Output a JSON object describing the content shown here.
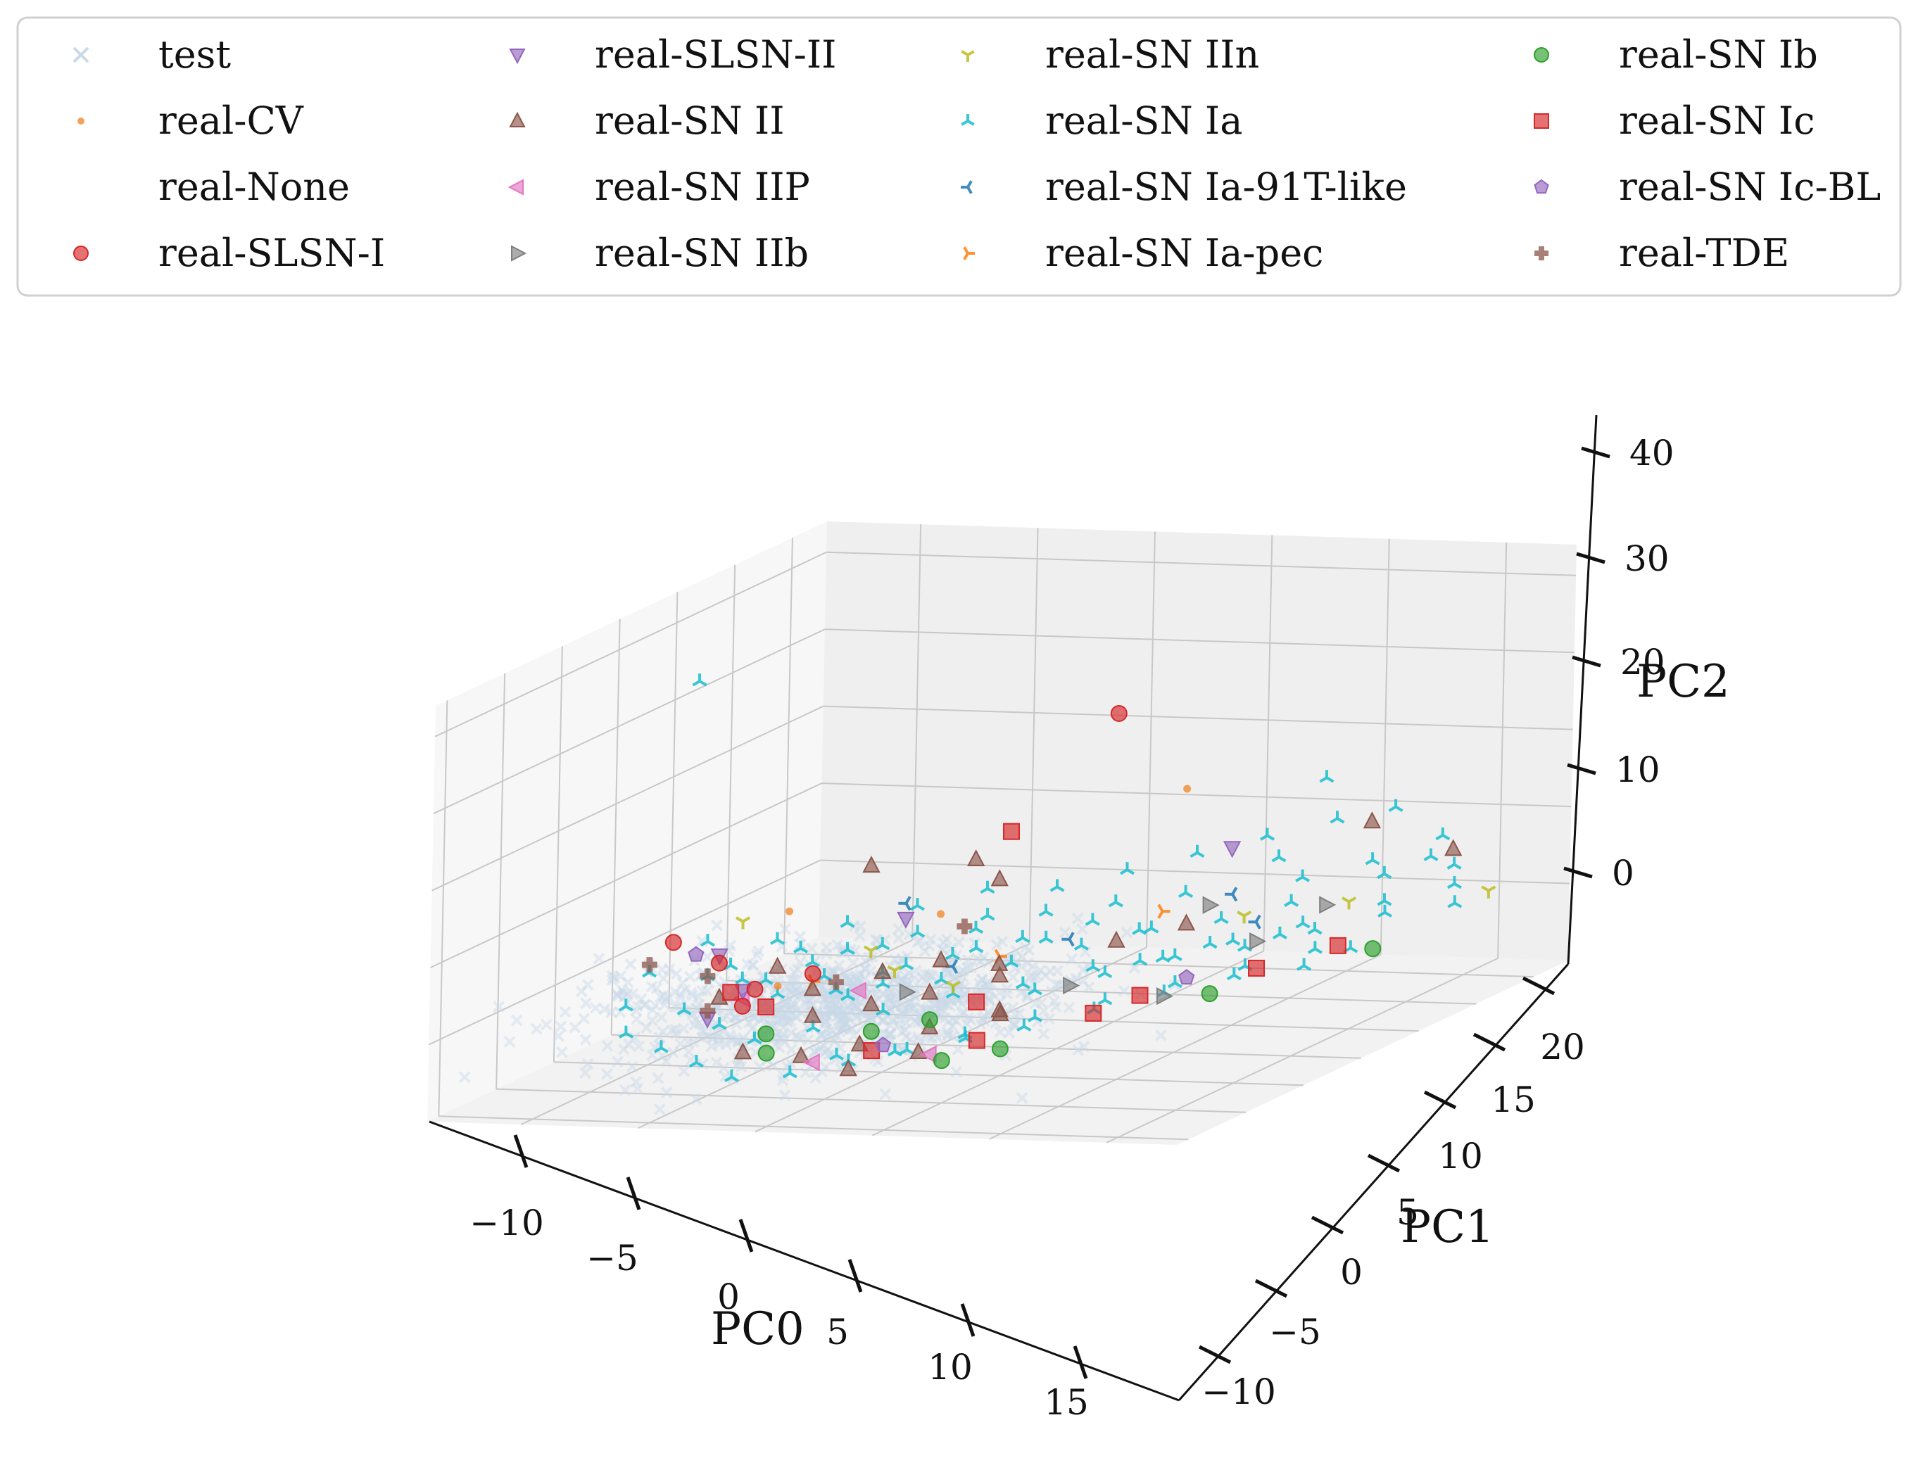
{
  "chart_data": {
    "type": "scatter",
    "projection": "3d",
    "title": "",
    "axes": {
      "x": {
        "label": "PC0",
        "ticks": [
          -10,
          -5,
          0,
          5,
          10,
          15
        ],
        "range": [
          -14,
          18
        ]
      },
      "y": {
        "label": "PC1",
        "ticks": [
          -10,
          -5,
          0,
          5,
          10,
          15,
          20
        ],
        "range": [
          -11,
          23
        ]
      },
      "z": {
        "label": "PC2",
        "ticks": [
          0,
          10,
          20,
          30,
          40
        ],
        "range": [
          -10,
          44
        ]
      }
    },
    "grid": true,
    "legend": {
      "placement": "top",
      "columns": 4,
      "entries": [
        {
          "label": "test",
          "marker": "x",
          "color": "#c9d9e8"
        },
        {
          "label": "real-CV",
          "marker": "dot",
          "color": "#f0903c"
        },
        {
          "label": "real-None",
          "marker": "none",
          "color": "#ffffff"
        },
        {
          "label": "real-SLSN-I",
          "marker": "circle",
          "color": "#d62728"
        },
        {
          "label": "real-SLSN-II",
          "marker": "triangle-down",
          "color": "#9467bd"
        },
        {
          "label": "real-SN II",
          "marker": "triangle-up",
          "color": "#8c564b"
        },
        {
          "label": "real-SN IIP",
          "marker": "triangle-left",
          "color": "#e377c2"
        },
        {
          "label": "real-SN IIb",
          "marker": "triangle-right",
          "color": "#7f7f7f"
        },
        {
          "label": "real-SN IIn",
          "marker": "tri-down",
          "color": "#bcbd22"
        },
        {
          "label": "real-SN Ia",
          "marker": "tri-up",
          "color": "#17becf"
        },
        {
          "label": "real-SN Ia-91T-like",
          "marker": "tri-left",
          "color": "#1f77b4"
        },
        {
          "label": "real-SN Ia-pec",
          "marker": "tri-right",
          "color": "#ff7f0e"
        },
        {
          "label": "real-SN Ib",
          "marker": "circle",
          "color": "#2ca02c"
        },
        {
          "label": "real-SN Ic",
          "marker": "square",
          "color": "#d62728"
        },
        {
          "label": "real-SN Ic-BL",
          "marker": "pentagon",
          "color": "#9467bd"
        },
        {
          "label": "real-TDE",
          "marker": "plus",
          "color": "#8c564b"
        }
      ]
    },
    "series": [
      {
        "name": "real-SLSN-I",
        "points": [
          [
            3,
            14,
            27
          ],
          [
            -9,
            0,
            6
          ],
          [
            -8,
            2,
            2
          ],
          [
            -5,
            -1,
            1
          ],
          [
            -6,
            0,
            -2
          ],
          [
            -4,
            2,
            1
          ]
        ]
      },
      {
        "name": "real-CV",
        "points": [
          [
            5,
            16,
            16
          ],
          [
            -7,
            6,
            6
          ],
          [
            -2,
            9,
            4
          ],
          [
            -5,
            1,
            0
          ]
        ]
      },
      {
        "name": "real-SLSN-II",
        "points": [
          [
            6,
            18,
            7
          ],
          [
            -8,
            2,
            3
          ],
          [
            -3,
            8,
            4
          ],
          [
            -6,
            0,
            0
          ],
          [
            -7,
            -1,
            -3
          ]
        ]
      },
      {
        "name": "real-SN II",
        "points": [
          [
            10,
            22,
            8
          ],
          [
            13,
            23,
            4
          ],
          [
            -5,
            9,
            10
          ],
          [
            0,
            10,
            8
          ],
          [
            -2,
            12,
            9
          ],
          [
            -6,
            3,
            1
          ],
          [
            -4,
            2,
            -1
          ],
          [
            -2,
            4,
            0
          ],
          [
            0,
            5,
            1
          ],
          [
            2,
            6,
            0
          ],
          [
            -3,
            0,
            -3
          ],
          [
            -1,
            1,
            -2
          ],
          [
            1,
            2,
            -1
          ],
          [
            3,
            4,
            0
          ],
          [
            4,
            2,
            -3
          ],
          [
            2,
            0,
            -4
          ],
          [
            0,
            -2,
            -5
          ],
          [
            -2,
            -3,
            -6
          ],
          [
            1,
            -5,
            -6
          ],
          [
            3,
            -3,
            -5
          ],
          [
            5,
            0,
            -2
          ],
          [
            -4,
            -4,
            -5
          ],
          [
            -7,
            0,
            -1
          ],
          [
            6,
            8,
            2
          ],
          [
            8,
            10,
            3
          ]
        ]
      },
      {
        "name": "real-SN IIP",
        "points": [
          [
            -1,
            -4,
            -6
          ],
          [
            3,
            -2,
            -6
          ],
          [
            -6,
            0,
            -1
          ],
          [
            -2,
            2,
            -1
          ]
        ]
      },
      {
        "name": "real-SN IIb",
        "points": [
          [
            11,
            10,
            1
          ],
          [
            12,
            14,
            3
          ],
          [
            10,
            4,
            -2
          ],
          [
            8,
            12,
            4
          ],
          [
            6,
            4,
            -1
          ],
          [
            0,
            2,
            -1
          ]
        ]
      },
      {
        "name": "real-SN IIn",
        "points": [
          [
            16,
            20,
            1
          ],
          [
            -8,
            4,
            6
          ],
          [
            -3,
            5,
            2
          ],
          [
            9,
            13,
            2
          ],
          [
            12,
            16,
            2
          ],
          [
            2,
            2,
            0
          ],
          [
            -1,
            3,
            1
          ]
        ]
      },
      {
        "name": "real-SN Ia",
        "points": [
          [
            -12,
            8,
            34
          ],
          [
            9,
            20,
            15
          ],
          [
            11,
            22,
            10
          ],
          [
            14,
            20,
            8
          ],
          [
            12,
            18,
            6
          ],
          [
            10,
            16,
            5
          ],
          [
            8,
            18,
            6
          ],
          [
            6,
            14,
            4
          ],
          [
            4,
            10,
            3
          ],
          [
            2,
            8,
            2
          ],
          [
            0,
            6,
            1
          ],
          [
            -2,
            4,
            0
          ],
          [
            -4,
            3,
            0
          ],
          [
            -6,
            2,
            0
          ],
          [
            -8,
            1,
            1
          ],
          [
            -10,
            0,
            2
          ],
          [
            -9,
            3,
            4
          ],
          [
            -7,
            5,
            3
          ],
          [
            -5,
            7,
            4
          ],
          [
            -3,
            9,
            5
          ],
          [
            -1,
            11,
            6
          ],
          [
            1,
            13,
            5
          ],
          [
            3,
            15,
            6
          ],
          [
            5,
            17,
            7
          ],
          [
            7,
            19,
            8
          ],
          [
            9,
            21,
            9
          ],
          [
            13,
            17,
            5
          ],
          [
            15,
            19,
            5
          ],
          [
            14,
            15,
            3
          ],
          [
            12,
            12,
            2
          ],
          [
            10,
            10,
            1
          ],
          [
            8,
            8,
            0
          ],
          [
            6,
            6,
            0
          ],
          [
            4,
            4,
            -1
          ],
          [
            2,
            2,
            -1
          ],
          [
            0,
            0,
            -2
          ],
          [
            -2,
            -2,
            -3
          ],
          [
            -4,
            -3,
            -4
          ],
          [
            -6,
            -2,
            -3
          ],
          [
            -8,
            -1,
            -2
          ],
          [
            -10,
            -2,
            -1
          ],
          [
            -9,
            -4,
            -3
          ],
          [
            -7,
            -5,
            -4
          ],
          [
            -5,
            -6,
            -5
          ],
          [
            -3,
            -7,
            -6
          ],
          [
            -1,
            -6,
            -6
          ],
          [
            1,
            -5,
            -5
          ],
          [
            3,
            -4,
            -4
          ],
          [
            5,
            -3,
            -3
          ],
          [
            7,
            -2,
            -2
          ],
          [
            9,
            0,
            -1
          ],
          [
            11,
            2,
            0
          ],
          [
            13,
            4,
            1
          ],
          [
            15,
            6,
            1
          ],
          [
            16,
            8,
            2
          ],
          [
            14,
            9,
            1
          ],
          [
            12,
            7,
            0
          ],
          [
            10,
            5,
            -1
          ],
          [
            8,
            3,
            -2
          ],
          [
            6,
            1,
            -3
          ],
          [
            4,
            -1,
            -4
          ],
          [
            2,
            -3,
            -5
          ],
          [
            0,
            -4,
            -5
          ],
          [
            -2,
            1,
            -1
          ],
          [
            -1,
            2,
            0
          ],
          [
            1,
            3,
            0
          ],
          [
            3,
            5,
            1
          ],
          [
            5,
            7,
            2
          ],
          [
            7,
            9,
            3
          ],
          [
            9,
            11,
            3
          ],
          [
            11,
            13,
            4
          ],
          [
            -4,
            5,
            2
          ],
          [
            -3,
            6,
            2
          ],
          [
            -5,
            4,
            1
          ],
          [
            -6,
            5,
            2
          ],
          [
            0,
            8,
            3
          ],
          [
            2,
            10,
            4
          ],
          [
            4,
            12,
            4
          ],
          [
            6,
            10,
            2
          ],
          [
            8,
            6,
            1
          ],
          [
            10,
            8,
            2
          ],
          [
            12,
            10,
            2
          ],
          [
            -1,
            4,
            1
          ],
          [
            1,
            6,
            2
          ],
          [
            3,
            8,
            2
          ],
          [
            -7,
            2,
            0
          ],
          [
            -8,
            3,
            1
          ],
          [
            -3,
            2,
            -1
          ],
          [
            -5,
            1,
            -1
          ],
          [
            5,
            3,
            -1
          ],
          [
            7,
            5,
            0
          ],
          [
            9,
            7,
            1
          ],
          [
            11,
            9,
            1
          ],
          [
            13,
            11,
            2
          ],
          [
            15,
            13,
            3
          ],
          [
            17,
            15,
            3
          ],
          [
            16,
            17,
            4
          ],
          [
            14,
            19,
            6
          ],
          [
            -2,
            7,
            3
          ],
          [
            0,
            9,
            4
          ]
        ]
      },
      {
        "name": "real-SN Ia-91T-like",
        "points": [
          [
            -3,
            8,
            6
          ],
          [
            1,
            4,
            1
          ],
          [
            4,
            8,
            2
          ],
          [
            8,
            14,
            4
          ],
          [
            10,
            12,
            2
          ]
        ]
      },
      {
        "name": "real-SN Ia-pec",
        "points": [
          [
            -4,
            2,
            0
          ],
          [
            2,
            6,
            1
          ],
          [
            6,
            12,
            3
          ]
        ]
      },
      {
        "name": "real-SN Ib",
        "points": [
          [
            15,
            12,
            -1
          ],
          [
            11,
            6,
            -3
          ],
          [
            6,
            -2,
            -5
          ],
          [
            4,
            -3,
            -6
          ],
          [
            -4,
            -2,
            -4
          ],
          [
            0,
            -1,
            -4
          ],
          [
            -3,
            -4,
            -5
          ],
          [
            2,
            0,
            -3
          ]
        ]
      },
      {
        "name": "real-SN Ic",
        "points": [
          [
            -1,
            13,
            12
          ],
          [
            14,
            11,
            0
          ],
          [
            12,
            8,
            -1
          ],
          [
            8,
            2,
            -3
          ],
          [
            5,
            -2,
            -4
          ],
          [
            9,
            4,
            -2
          ],
          [
            -5,
            0,
            -2
          ],
          [
            3,
            2,
            -2
          ],
          [
            -7,
            1,
            -1
          ],
          [
            1,
            -3,
            -5
          ]
        ]
      },
      {
        "name": "real-SN Ic-BL",
        "points": [
          [
            -9,
            2,
            3
          ],
          [
            1,
            -2,
            -5
          ],
          [
            10,
            6,
            -1
          ]
        ]
      },
      {
        "name": "real-TDE",
        "points": [
          [
            -10,
            0,
            3
          ],
          [
            -8,
            1,
            1
          ],
          [
            -7,
            -1,
            -2
          ],
          [
            -3,
            2,
            0
          ],
          [
            0,
            7,
            4
          ]
        ]
      },
      {
        "name": "test",
        "points": []
      }
    ]
  }
}
